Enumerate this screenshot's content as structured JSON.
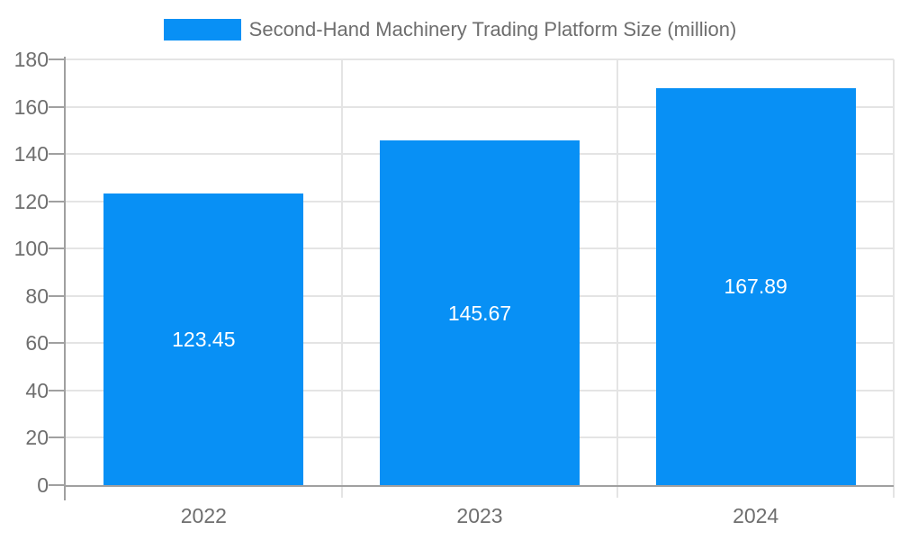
{
  "chart_data": {
    "type": "bar",
    "title": "Second-Hand Machinery Trading Platform Size (million)",
    "categories": [
      "2022",
      "2023",
      "2024"
    ],
    "values": [
      123.45,
      145.67,
      167.89
    ],
    "value_labels": [
      "123.45",
      "145.67",
      "167.89"
    ],
    "xlabel": "",
    "ylabel": "",
    "ylim": [
      0,
      180
    ],
    "ytick_step": 20,
    "yticks": [
      0,
      20,
      40,
      60,
      80,
      100,
      120,
      140,
      160,
      180
    ],
    "grid": true,
    "legend_position": "top-center",
    "colors": {
      "bar": "#0890f5",
      "value_label": "#ffffff",
      "axis_line": "#a0a0a0",
      "gridline": "#e4e4e4",
      "tick_label": "#6e6e6e",
      "title": "#6e6e6e",
      "background": "#ffffff"
    }
  }
}
